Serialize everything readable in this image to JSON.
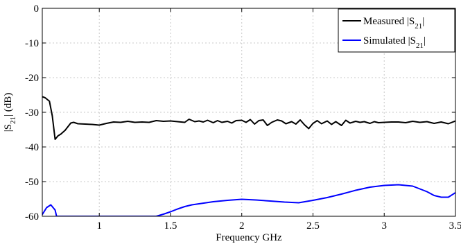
{
  "chart_data": {
    "type": "line",
    "title": "",
    "xlabel": "Frequency GHz",
    "ylabel": "|S21| (dB)",
    "xlim": [
      0.6,
      3.5
    ],
    "ylim": [
      -60,
      0
    ],
    "grid": true,
    "legend_position": "top-right",
    "x_ticks": [
      1,
      1.5,
      2,
      2.5,
      3,
      3.5
    ],
    "x_tick_labels": [
      "1",
      "1.5",
      "2",
      "2.5",
      "3",
      "3.5"
    ],
    "y_ticks": [
      0,
      -10,
      -20,
      -30,
      -40,
      -50,
      -60
    ],
    "y_tick_labels": [
      "0",
      "-10",
      "-20",
      "-30",
      "-40",
      "-50",
      "-60"
    ],
    "series": [
      {
        "name": "Measured |S21|",
        "color": "#000000",
        "x": [
          0.6,
          0.62,
          0.65,
          0.67,
          0.69,
          0.71,
          0.73,
          0.76,
          0.8,
          0.82,
          0.85,
          0.9,
          0.95,
          1.0,
          1.05,
          1.1,
          1.15,
          1.2,
          1.25,
          1.3,
          1.35,
          1.4,
          1.45,
          1.5,
          1.55,
          1.6,
          1.63,
          1.67,
          1.7,
          1.73,
          1.76,
          1.8,
          1.83,
          1.86,
          1.9,
          1.93,
          1.96,
          2.0,
          2.03,
          2.06,
          2.09,
          2.12,
          2.15,
          2.18,
          2.21,
          2.25,
          2.28,
          2.31,
          2.35,
          2.38,
          2.41,
          2.44,
          2.47,
          2.5,
          2.53,
          2.56,
          2.6,
          2.63,
          2.66,
          2.7,
          2.73,
          2.76,
          2.8,
          2.83,
          2.86,
          2.9,
          2.93,
          2.96,
          3.0,
          3.05,
          3.1,
          3.15,
          3.2,
          3.25,
          3.3,
          3.35,
          3.4,
          3.45,
          3.5
        ],
        "y": [
          -25.5,
          -25.8,
          -26.8,
          -31.0,
          -37.8,
          -36.8,
          -36.3,
          -35.2,
          -33.1,
          -32.9,
          -33.3,
          -33.4,
          -33.5,
          -33.7,
          -33.2,
          -32.8,
          -32.9,
          -32.6,
          -32.9,
          -32.8,
          -32.9,
          -32.4,
          -32.6,
          -32.5,
          -32.7,
          -32.9,
          -32.0,
          -32.7,
          -32.5,
          -32.8,
          -32.3,
          -33.0,
          -32.4,
          -32.9,
          -32.6,
          -33.1,
          -32.4,
          -32.3,
          -32.9,
          -32.1,
          -33.4,
          -32.4,
          -32.2,
          -33.8,
          -32.9,
          -32.2,
          -32.5,
          -33.3,
          -32.7,
          -33.4,
          -32.2,
          -33.6,
          -34.7,
          -33.2,
          -32.4,
          -33.3,
          -32.5,
          -33.5,
          -32.7,
          -33.8,
          -32.3,
          -33.1,
          -32.6,
          -32.9,
          -32.7,
          -33.2,
          -32.7,
          -33.0,
          -32.9,
          -32.8,
          -32.8,
          -33.0,
          -32.6,
          -32.9,
          -32.7,
          -33.2,
          -32.8,
          -33.3,
          -32.5
        ]
      },
      {
        "name": "Simulated |S21|",
        "color": "#0000ff",
        "x": [
          0.6,
          0.63,
          0.66,
          0.69,
          0.7,
          1.4,
          1.45,
          1.5,
          1.55,
          1.6,
          1.65,
          1.7,
          1.8,
          1.9,
          2.0,
          2.1,
          2.2,
          2.3,
          2.4,
          2.5,
          2.6,
          2.7,
          2.8,
          2.9,
          3.0,
          3.1,
          3.2,
          3.3,
          3.35,
          3.4,
          3.45,
          3.5
        ],
        "y": [
          -59.5,
          -57.5,
          -56.7,
          -58.2,
          -60.0,
          -60.0,
          -59.4,
          -58.7,
          -57.9,
          -57.2,
          -56.7,
          -56.4,
          -55.8,
          -55.4,
          -55.1,
          -55.3,
          -55.6,
          -55.9,
          -56.1,
          -55.4,
          -54.6,
          -53.6,
          -52.5,
          -51.6,
          -51.1,
          -50.9,
          -51.3,
          -52.9,
          -54.0,
          -54.5,
          -54.5,
          -53.2
        ]
      }
    ]
  }
}
